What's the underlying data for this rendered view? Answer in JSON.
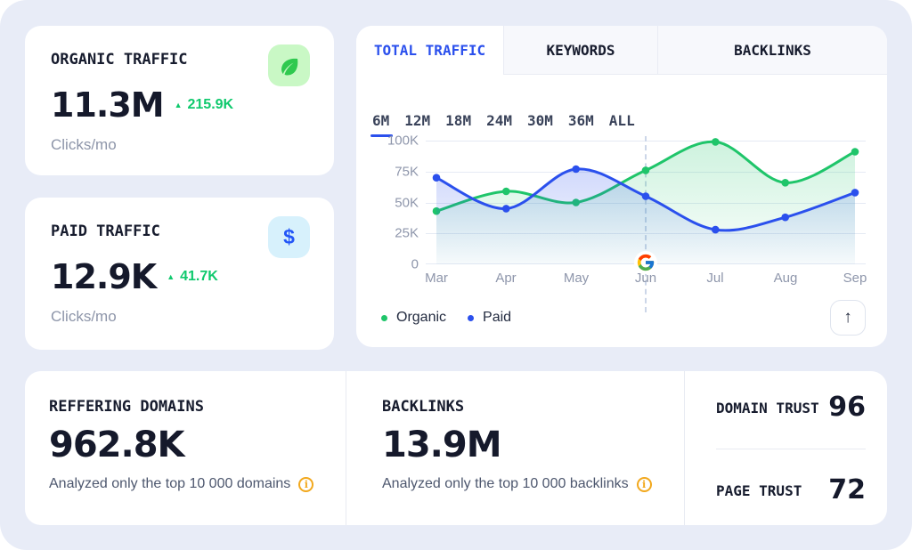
{
  "colors": {
    "background": "#e8ecf7",
    "card": "#ffffff",
    "accent_blue": "#2b50ed",
    "organic_green": "#1fc56a",
    "delta_green": "#0fc96d",
    "info_orange": "#f2a81d",
    "text_dark": "#15192b",
    "text_gray": "#8e96ab",
    "leaf_badge_bg": "#c9f8c5",
    "dollar_badge_bg": "#d7f1fc"
  },
  "stat_cards": {
    "organic": {
      "title": "ORGANIC TRAFFIC",
      "value": "11.3M",
      "delta": "215.9K",
      "delta_direction": "up",
      "unit": "Clicks/mo",
      "icon": "leaf-icon"
    },
    "paid": {
      "title": "PAID TRAFFIC",
      "value": "12.9K",
      "delta": "41.7K",
      "delta_direction": "up",
      "unit": "Clicks/mo",
      "icon": "dollar-icon"
    }
  },
  "traffic_panel": {
    "tabs": [
      {
        "label": "TOTAL TRAFFIC",
        "active": true
      },
      {
        "label": "KEYWORDS",
        "active": false
      },
      {
        "label": "BACKLINKS",
        "active": false
      }
    ],
    "ranges": [
      "6M",
      "12M",
      "18M",
      "24M",
      "30M",
      "36M",
      "ALL"
    ],
    "active_range": "6M",
    "legend": [
      {
        "label": "Organic",
        "color": "#1fc56a"
      },
      {
        "label": "Paid",
        "color": "#2b50ed"
      }
    ],
    "scroll_top_icon": "arrow-up-icon",
    "scroll_top_glyph": "↑"
  },
  "chart_data": {
    "type": "line",
    "x": [
      "Mar",
      "Apr",
      "May",
      "Jun",
      "Jul",
      "Aug",
      "Sep"
    ],
    "series": [
      {
        "name": "Organic",
        "color": "#1fc56a",
        "values": [
          43000,
          59000,
          50000,
          76000,
          99000,
          66000,
          91000
        ]
      },
      {
        "name": "Paid",
        "color": "#2b50ed",
        "values": [
          70000,
          45000,
          77000,
          55000,
          28000,
          38000,
          58000
        ]
      }
    ],
    "ylim": [
      0,
      100000
    ],
    "yticks": [
      "100K",
      "75K",
      "50K",
      "25K",
      "0"
    ],
    "grid": "horizontal",
    "legend_position": "bottom-left",
    "annotation": {
      "x": "Jun",
      "icon": "google-logo",
      "style": "dashed-vertical-line"
    }
  },
  "bottom_panel": {
    "referring_domains": {
      "title": "REFFERING DOMAINS",
      "value": "962.8K",
      "note": "Analyzed only the top 10 000 domains",
      "info_icon": "info-icon"
    },
    "backlinks": {
      "title": "BACKLINKS",
      "value": "13.9M",
      "note": "Analyzed only the top 10 000 backlinks",
      "info_icon": "info-icon"
    },
    "trust": [
      {
        "label": "DOMAIN TRUST",
        "value": "96"
      },
      {
        "label": "PAGE TRUST",
        "value": "72"
      }
    ]
  },
  "misc": {
    "delta_arrow_glyph": "▲",
    "info_glyph": "i",
    "dollar_glyph": "$"
  }
}
